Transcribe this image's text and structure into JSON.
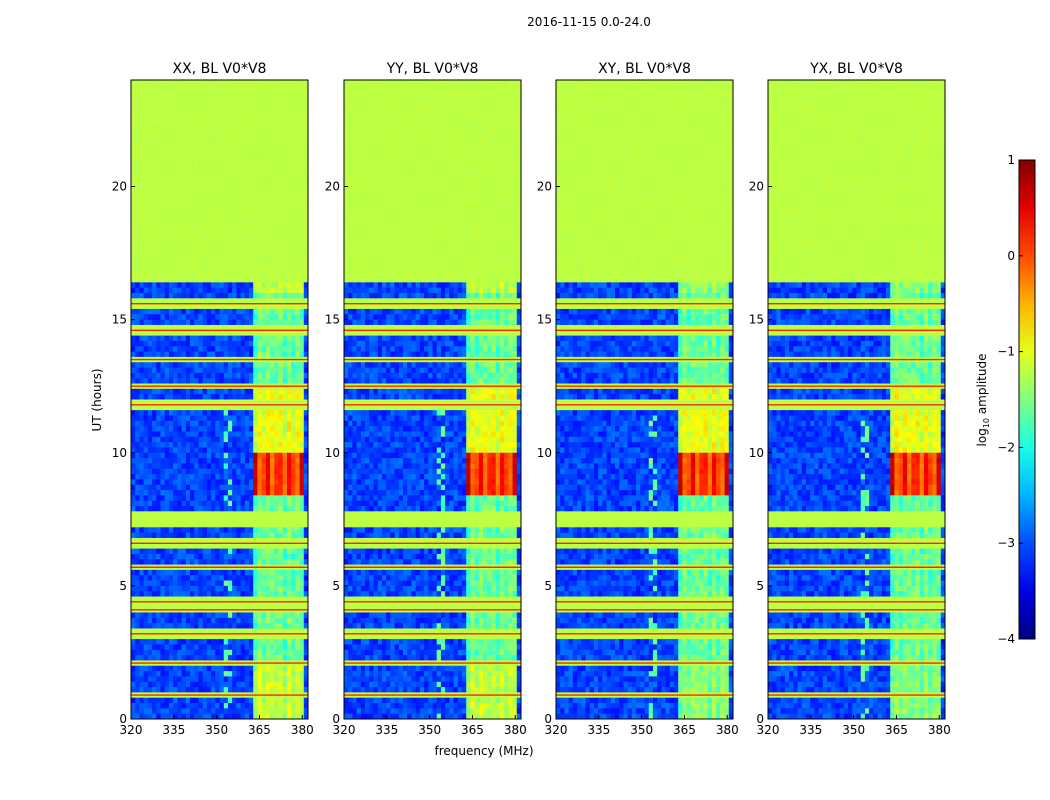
{
  "chart_data": {
    "type": "heatmap",
    "suptitle": "2016-11-15 0.0-24.0",
    "xlabel": "frequency (MHz)",
    "ylabel": "UT (hours)",
    "xlim": [
      320,
      382
    ],
    "ylim": [
      0,
      24
    ],
    "xticks": [
      320,
      335,
      350,
      365,
      380
    ],
    "yticks": [
      0,
      5,
      10,
      15,
      20
    ],
    "panels": [
      {
        "title": "XX, BL V0*V8",
        "cross_pol": false
      },
      {
        "title": "YY, BL V0*V8",
        "cross_pol": false
      },
      {
        "title": "XY, BL V0*V8",
        "cross_pol": true
      },
      {
        "title": "YX, BL V0*V8",
        "cross_pol": true
      }
    ],
    "colorbar": {
      "label_base": "log",
      "label_sub": "10",
      "label_rest": " amplitude",
      "min": -4,
      "max": 1,
      "ticks": [
        -4,
        -3,
        -2,
        -1,
        0,
        1
      ],
      "tick_labels": [
        "−4",
        "−3",
        "−2",
        "−1",
        "0",
        "1"
      ],
      "colormap": "jet"
    },
    "flagged_value": -1.2,
    "strong_rfi": {
      "freq_range": [
        363.5,
        380
      ],
      "ut_range": [
        8.3,
        10.0
      ],
      "peak_value": 0.6
    },
    "flagged_bands_ut": [
      [
        16.4,
        24.0
      ],
      [
        7.2,
        7.7
      ],
      [
        0.3,
        0.45
      ]
    ],
    "flagged_lines_ut": [
      0.9,
      2.1,
      3.2,
      4.1,
      4.4,
      5.7,
      6.6,
      11.8,
      12.5,
      13.5,
      14.6,
      15.6
    ]
  }
}
